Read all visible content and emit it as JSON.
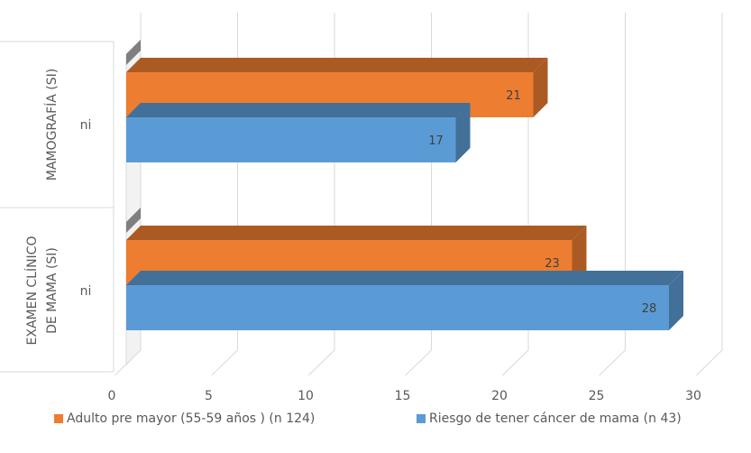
{
  "chart_data": {
    "type": "bar",
    "orientation": "horizontal",
    "three_d": true,
    "groups": [
      {
        "label": "MAMOGRAFÍA (SI)",
        "sublabel": "ni"
      },
      {
        "label": "EXAMEN CLÍNICO DE MAMA  (SI)",
        "sublabel": "ni"
      }
    ],
    "series": [
      {
        "name": "Adulto pre mayor (55-59 años )  (n 124)",
        "color": "#ED7D31",
        "values": [
          21,
          23
        ]
      },
      {
        "name": "Riesgo de tener cáncer de mama  (n 43)",
        "color": "#5B9BD5",
        "values": [
          17,
          28
        ]
      }
    ],
    "x_ticks": [
      0,
      5,
      10,
      15,
      20,
      25,
      30
    ],
    "xlim": [
      0,
      30
    ],
    "grid": true,
    "data_labels": true,
    "legend_position": "bottom"
  }
}
